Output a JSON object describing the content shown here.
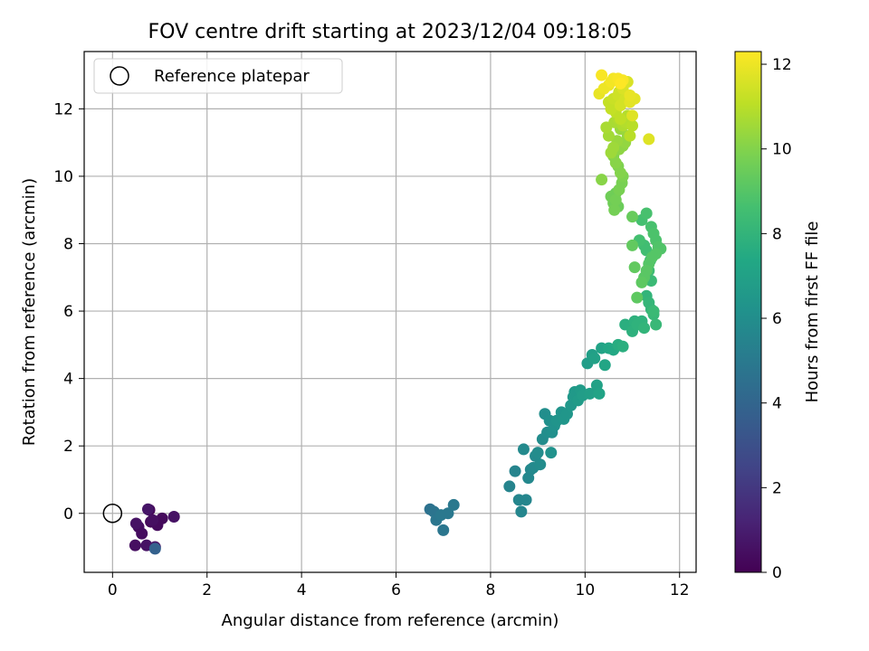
{
  "chart_data": {
    "type": "scatter",
    "title": "FOV centre drift starting at 2023/12/04 09:18:05",
    "xlabel": "Angular distance from reference (arcmin)",
    "ylabel": "Rotation from reference (arcmin)",
    "xlim": [
      -0.6,
      12.35
    ],
    "ylim": [
      -1.75,
      13.7
    ],
    "x_ticks": [
      0,
      2,
      4,
      6,
      8,
      10,
      12
    ],
    "y_ticks": [
      0,
      2,
      4,
      6,
      8,
      10,
      12
    ],
    "grid": true,
    "legend": {
      "position": "top-left",
      "entries": [
        "Reference platepar"
      ]
    },
    "reference": {
      "x": 0,
      "y": 0
    },
    "colorbar": {
      "label": "Hours from first FF file",
      "colormap": "viridis",
      "range": [
        0,
        12.3
      ],
      "ticks": [
        0,
        2,
        4,
        6,
        8,
        10,
        12
      ]
    },
    "series": [
      {
        "hours_from_first_ff": [
          0.1,
          0.2,
          0.3,
          0.3,
          0.4,
          0.4,
          0.5,
          0.5,
          0.6,
          0.6,
          0.6,
          0.7,
          0.8,
          3.8,
          4.6,
          4.7,
          4.8,
          4.8,
          4.9,
          4.9,
          4.9,
          5.5,
          5.5,
          5.6,
          5.6,
          5.6,
          5.7,
          5.7,
          5.8,
          5.8,
          5.8,
          5.9,
          5.9,
          5.9,
          6.0,
          6.0,
          6.1,
          6.1,
          6.2,
          6.2,
          6.3,
          6.3,
          6.4,
          6.4,
          6.5,
          6.5,
          6.6,
          6.6,
          6.7,
          6.7,
          6.8,
          6.8,
          6.9,
          6.9,
          7.0,
          7.0,
          7.1,
          7.1,
          7.2,
          7.3,
          7.4,
          7.6,
          7.7,
          7.7,
          7.8,
          7.8,
          7.9,
          7.9,
          8.0,
          8.0,
          8.1,
          8.1,
          8.2,
          8.2,
          8.3,
          8.3,
          8.4,
          8.4,
          8.5,
          8.5,
          8.6,
          8.6,
          8.7,
          8.7,
          8.8,
          8.8,
          8.9,
          8.9,
          9.0,
          9.0,
          9.0,
          9.1,
          9.1,
          9.2,
          9.2,
          9.3,
          9.3,
          9.4,
          9.5,
          9.5,
          9.6,
          9.6,
          9.7,
          9.7,
          9.8,
          9.8,
          9.9,
          9.9,
          10.0,
          10.0,
          10.1,
          10.1,
          10.2,
          10.2,
          10.3,
          10.3,
          10.4,
          10.4,
          10.5,
          10.5,
          10.6,
          10.7,
          10.7,
          10.8,
          10.8,
          10.9,
          10.9,
          11.0,
          11.0,
          11.1,
          11.1,
          11.2,
          11.2,
          11.3,
          11.4,
          11.4,
          11.5,
          11.5,
          11.6,
          11.6,
          11.7,
          11.7,
          11.8,
          11.8,
          11.9,
          11.9,
          12.0,
          12.0,
          12.1,
          12.1,
          12.2,
          12.2,
          12.2,
          12.3
        ],
        "x": [
          0.78,
          0.81,
          1.05,
          0.95,
          0.55,
          0.62,
          0.48,
          0.85,
          0.72,
          1.3,
          0.5,
          0.75,
          0.9,
          0.9,
          6.72,
          6.8,
          6.85,
          7.0,
          7.1,
          7.22,
          6.95,
          8.4,
          8.52,
          8.6,
          8.65,
          8.75,
          8.8,
          8.85,
          8.7,
          8.9,
          8.95,
          9.0,
          9.05,
          9.1,
          9.15,
          9.2,
          9.25,
          9.3,
          9.35,
          9.28,
          9.4,
          9.5,
          9.55,
          9.62,
          9.7,
          9.75,
          9.78,
          9.8,
          9.85,
          9.9,
          9.95,
          10.05,
          10.1,
          10.15,
          10.2,
          10.25,
          10.3,
          10.35,
          10.42,
          10.5,
          10.6,
          10.7,
          10.8,
          10.85,
          11.0,
          11.05,
          11.1,
          11.2,
          11.25,
          11.3,
          11.35,
          11.4,
          11.45,
          11.5,
          11.45,
          11.4,
          11.35,
          11.38,
          11.3,
          11.25,
          11.15,
          11.2,
          11.3,
          11.4,
          11.45,
          11.5,
          11.55,
          11.6,
          11.5,
          11.42,
          11.35,
          11.3,
          11.25,
          11.2,
          11.1,
          11.05,
          11.0,
          11.0,
          10.7,
          10.65,
          10.55,
          10.6,
          10.62,
          10.65,
          10.72,
          10.78,
          10.8,
          10.7,
          10.75,
          10.6,
          10.65,
          10.35,
          10.72,
          10.8,
          10.85,
          10.9,
          10.75,
          10.68,
          10.6,
          10.55,
          10.5,
          10.45,
          10.62,
          10.7,
          10.8,
          10.85,
          10.9,
          10.95,
          11.0,
          10.75,
          10.65,
          10.55,
          10.5,
          10.6,
          10.7,
          10.72,
          10.75,
          10.85,
          10.8,
          10.9,
          11.0,
          11.35,
          10.95,
          11.05,
          10.95,
          10.3,
          10.4,
          10.5,
          10.55,
          10.6,
          10.7,
          10.8,
          10.35,
          10.75
        ],
        "y": [
          0.1,
          -0.25,
          -0.15,
          -0.35,
          -0.4,
          -0.6,
          -0.95,
          -0.2,
          -0.95,
          -0.1,
          -0.3,
          0.12,
          -1.0,
          -1.05,
          0.12,
          0.05,
          -0.2,
          -0.5,
          0.0,
          0.25,
          -0.05,
          0.8,
          1.25,
          0.4,
          0.05,
          0.4,
          1.05,
          1.3,
          1.9,
          1.35,
          1.7,
          1.8,
          1.45,
          2.2,
          2.95,
          2.4,
          2.75,
          2.4,
          2.6,
          1.8,
          2.75,
          3.0,
          2.8,
          2.95,
          3.2,
          3.45,
          3.6,
          3.45,
          3.35,
          3.65,
          3.5,
          4.45,
          3.55,
          4.7,
          4.6,
          3.8,
          3.55,
          4.9,
          4.4,
          4.9,
          4.85,
          5.0,
          4.95,
          5.6,
          5.4,
          5.7,
          5.6,
          5.7,
          5.5,
          6.45,
          6.25,
          6.05,
          5.9,
          5.6,
          6.0,
          6.9,
          7.2,
          7.5,
          7.8,
          7.95,
          8.1,
          8.7,
          8.9,
          8.5,
          8.3,
          8.1,
          7.9,
          7.85,
          7.7,
          7.6,
          7.4,
          7.2,
          7.0,
          6.85,
          6.4,
          7.3,
          7.95,
          8.8,
          9.1,
          9.5,
          9.4,
          9.2,
          9.0,
          9.3,
          9.6,
          9.8,
          10.0,
          10.3,
          10.1,
          10.6,
          10.4,
          9.9,
          10.8,
          10.9,
          11.0,
          11.2,
          11.4,
          11.05,
          10.85,
          10.7,
          11.2,
          11.45,
          11.6,
          11.7,
          11.5,
          11.6,
          11.8,
          11.2,
          11.5,
          11.7,
          11.9,
          12.0,
          12.2,
          12.3,
          12.4,
          12.5,
          12.1,
          12.3,
          12.6,
          12.8,
          11.8,
          11.1,
          12.2,
          12.3,
          12.4,
          12.45,
          12.6,
          12.7,
          12.8,
          12.9,
          12.9,
          12.85,
          13.0,
          12.75
        ]
      }
    ]
  },
  "colors": {
    "reference_marker_stroke": "#000000",
    "grid": "#b0b0b0",
    "axis": "#000000"
  }
}
